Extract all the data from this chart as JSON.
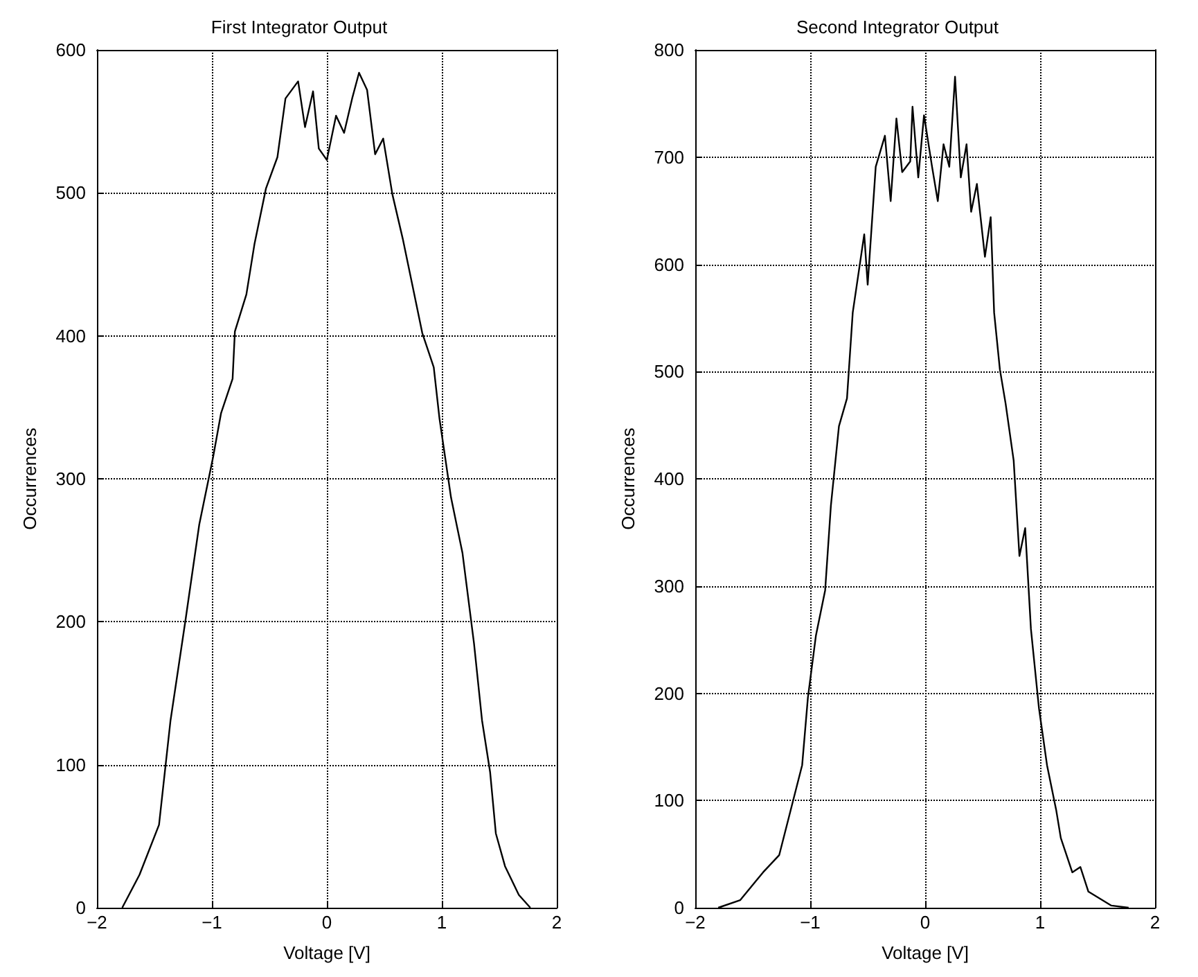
{
  "chart_data": [
    {
      "type": "line",
      "title": "First Integrator Output",
      "xlabel": "Voltage [V]",
      "ylabel": "Occurrences",
      "xlim": [
        -2,
        2
      ],
      "xticks": [
        -2,
        -1,
        0,
        1,
        2
      ],
      "ylim": [
        0,
        600
      ],
      "yticks": [
        0,
        100,
        200,
        300,
        400,
        500,
        600
      ],
      "grid": true,
      "marker": "none",
      "line_style": "solid",
      "x": [
        -1.78,
        -1.63,
        -1.46,
        -1.36,
        -1.23,
        -1.11,
        -0.99,
        -0.92,
        -0.82,
        -0.8,
        -0.7,
        -0.63,
        -0.53,
        -0.43,
        -0.36,
        -0.25,
        -0.19,
        -0.12,
        -0.07,
        0,
        0.08,
        0.15,
        0.22,
        0.28,
        0.35,
        0.42,
        0.49,
        0.57,
        0.66,
        0.74,
        0.83,
        0.93,
        0.98,
        1.08,
        1.18,
        1.28,
        1.35,
        1.42,
        1.47,
        1.55,
        1.67,
        1.77
      ],
      "series": [
        {
          "color": "#000000",
          "values": [
            0,
            23,
            58,
            131,
            201,
            268,
            315,
            346,
            370,
            403,
            429,
            464,
            503,
            525,
            566,
            578,
            546,
            571,
            531,
            523,
            554,
            542,
            566,
            584,
            572,
            527,
            538,
            499,
            468,
            437,
            402,
            378,
            342,
            287,
            248,
            185,
            131,
            95,
            52,
            29,
            9,
            0
          ]
        }
      ]
    },
    {
      "type": "line",
      "title": "Second Integrator Output",
      "xlabel": "Voltage [V]",
      "ylabel": "Occurrences",
      "xlim": [
        -2,
        2
      ],
      "xticks": [
        -2,
        -1,
        0,
        1,
        2
      ],
      "ylim": [
        0,
        800
      ],
      "yticks": [
        0,
        100,
        200,
        300,
        400,
        500,
        600,
        700,
        800
      ],
      "grid": true,
      "marker": "none",
      "line_style": "solid",
      "x": [
        -1.8,
        -1.61,
        -1.41,
        -1.27,
        -1.17,
        -1.07,
        -1.02,
        -0.95,
        -0.87,
        -0.82,
        -0.75,
        -0.68,
        -0.63,
        -0.53,
        -0.5,
        -0.43,
        -0.35,
        -0.3,
        -0.25,
        -0.2,
        -0.13,
        -0.11,
        -0.06,
        -0.01,
        0.06,
        0.11,
        0.16,
        0.21,
        0.26,
        0.31,
        0.36,
        0.4,
        0.45,
        0.52,
        0.57,
        0.6,
        0.65,
        0.7,
        0.77,
        0.82,
        0.87,
        0.92,
        0.99,
        1.06,
        1.14,
        1.18,
        1.28,
        1.35,
        1.42,
        1.62,
        1.77
      ],
      "series": [
        {
          "color": "#000000",
          "values": [
            0,
            7,
            33,
            49,
            91,
            133,
            196,
            254,
            296,
            375,
            449,
            475,
            555,
            628,
            581,
            691,
            720,
            659,
            736,
            686,
            696,
            747,
            681,
            739,
            691,
            659,
            712,
            691,
            775,
            681,
            712,
            649,
            675,
            607,
            644,
            555,
            502,
            470,
            417,
            328,
            354,
            260,
            186,
            133,
            91,
            65,
            33,
            38,
            15,
            2,
            0
          ]
        }
      ]
    }
  ]
}
